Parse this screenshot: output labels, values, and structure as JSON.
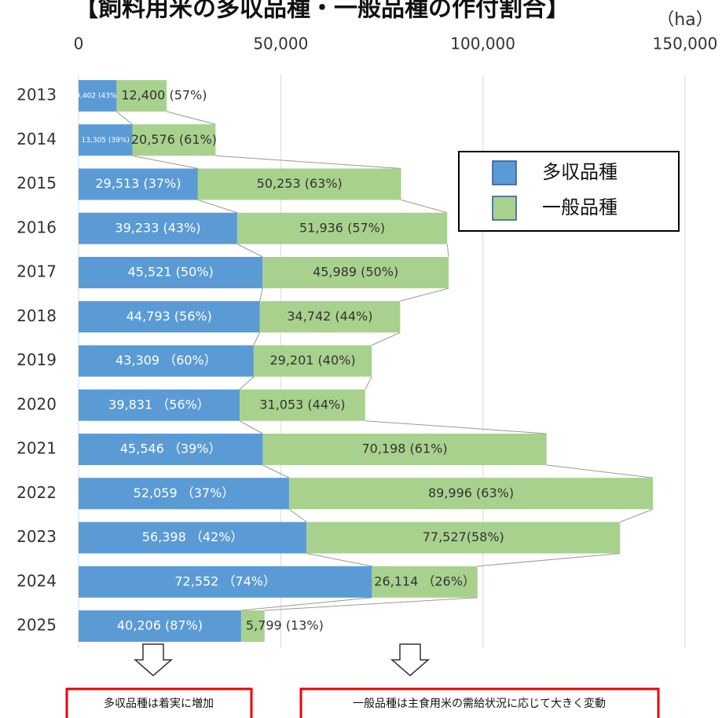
{
  "chart_data": {
    "type": "stacked_bar_horizontal",
    "title": "【飼料用米の多収品種・一般品種の作付割合】",
    "unit_label": "（ha）",
    "categories": [
      "2013",
      "2014",
      "2015",
      "2016",
      "2017",
      "2018",
      "2019",
      "2020",
      "2021",
      "2022",
      "2023",
      "2024",
      "2025"
    ],
    "series": [
      {
        "name": "多収品種",
        "color": "#5b9bd5",
        "values": [
          9402,
          13305,
          29513,
          39233,
          45521,
          44793,
          43309,
          39831,
          45546,
          52059,
          56398,
          72552,
          40206
        ],
        "value_labels": [
          "9,402 (43%)",
          "13,305 (39%)",
          "29,513 (37%)",
          "39,233 (43%)",
          "45,521 (50%)",
          "44,793 (56%)",
          "43,309 （60%）",
          "39,831 （56%）",
          "45,546 （39%）",
          "52,059 （37%）",
          "56,398 （42%）",
          "72,552 （74%）",
          "40,206 (87%)"
        ]
      },
      {
        "name": "一般品種",
        "color": "#a9d18e",
        "values": [
          12400,
          20576,
          50253,
          51936,
          45989,
          34742,
          29201,
          31053,
          70198,
          89996,
          77527,
          26114,
          5799
        ],
        "value_labels": [
          "12,400 (57%)",
          "20,576 (61%)",
          "50,253 (63%)",
          "51,936 (57%)",
          "45,989 (50%)",
          "34,742 (44%)",
          "29,201 (40%)",
          "31,053 (44%)",
          "70,198 (61%)",
          "89,996 (63%)",
          "77,527(58%)",
          "26,114 （26%）",
          "5,799 (13%)"
        ]
      }
    ],
    "xlim": [
      0,
      150000
    ],
    "xticks": [
      0,
      {
        "value": 50000,
        "label": "50,000"
      },
      {
        "value": 100000,
        "label": "100,000"
      },
      {
        "value": 150000,
        "label": "150,000"
      }
    ],
    "grid": true,
    "legend": "upper right",
    "annotations": [
      "多収品種は着実に増加",
      "一般品種は主食用米の需給状況に応じて大きく変動"
    ]
  }
}
